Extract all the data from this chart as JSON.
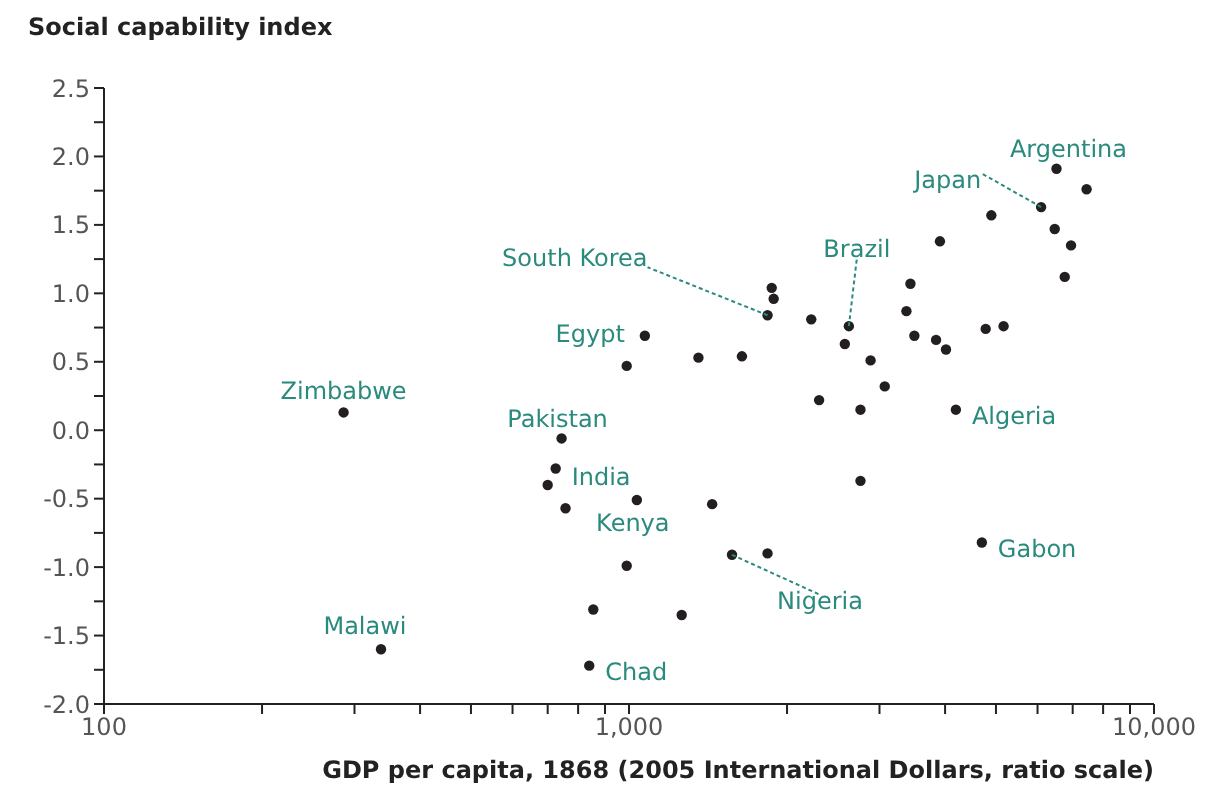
{
  "chart_data": {
    "type": "scatter",
    "xlabel": "GDP per capita, 1868 (2005 International Dollars, ratio scale)",
    "ylabel": "Social capability index",
    "log": "x",
    "grid": false,
    "legend": false,
    "marker": "circle",
    "xlim": [
      100,
      10000
    ],
    "xticks": [
      {
        "value": 100,
        "label": "100"
      },
      {
        "value": 200,
        "label": null
      },
      {
        "value": 300,
        "label": null
      },
      {
        "value": 400,
        "label": null
      },
      {
        "value": 500,
        "label": null
      },
      {
        "value": 600,
        "label": null
      },
      {
        "value": 700,
        "label": null
      },
      {
        "value": 800,
        "label": null
      },
      {
        "value": 900,
        "label": null
      },
      {
        "value": 1000,
        "label": "1,000"
      },
      {
        "value": 2000,
        "label": null
      },
      {
        "value": 3000,
        "label": null
      },
      {
        "value": 4000,
        "label": null
      },
      {
        "value": 5000,
        "label": null
      },
      {
        "value": 6000,
        "label": null
      },
      {
        "value": 7000,
        "label": null
      },
      {
        "value": 8000,
        "label": null
      },
      {
        "value": 9000,
        "label": null
      },
      {
        "value": 10000,
        "label": "10,000"
      }
    ],
    "ylim": [
      -2,
      2.5
    ],
    "yticks": [
      {
        "value": -2,
        "label": "-2.0"
      },
      {
        "value": -1.75,
        "label": null
      },
      {
        "value": -1.5,
        "label": "-1.5"
      },
      {
        "value": -1.25,
        "label": null
      },
      {
        "value": -1,
        "label": "-1.0"
      },
      {
        "value": -0.75,
        "label": null
      },
      {
        "value": -0.5,
        "label": "-0.5"
      },
      {
        "value": -0.25,
        "label": null
      },
      {
        "value": 0,
        "label": "0.0"
      },
      {
        "value": 0.25,
        "label": null
      },
      {
        "value": 0.5,
        "label": "0.5"
      },
      {
        "value": 0.75,
        "label": null
      },
      {
        "value": 1,
        "label": "1.0"
      },
      {
        "value": 1.25,
        "label": null
      },
      {
        "value": 1.5,
        "label": "1.5"
      },
      {
        "value": 1.75,
        "label": null
      },
      {
        "value": 2,
        "label": "2.0"
      },
      {
        "value": 2.25,
        "label": null
      },
      {
        "value": 2.5,
        "label": "2.5"
      }
    ],
    "series": [
      {
        "color": "#231f20",
        "x": [
          286,
          337,
          744,
          725,
          700,
          757,
          990,
          990,
          855,
          840,
          1035,
          1072,
          1356,
          1641,
          1870,
          1886,
          1836,
          2224,
          2623,
          2577,
          2885,
          2302,
          2760,
          3070,
          2760,
          3436,
          3376,
          3496,
          3845,
          4016,
          3911,
          4194,
          4900,
          4780,
          5170,
          6095,
          6520,
          7440,
          6470,
          6950,
          6760,
          4700,
          1571,
          1836,
          1440,
          1260
        ],
        "values": [
          0.13,
          -1.6,
          -0.06,
          -0.28,
          -0.4,
          -0.57,
          0.47,
          -0.99,
          -1.31,
          -1.72,
          -0.51,
          0.69,
          0.53,
          0.54,
          1.04,
          0.96,
          0.84,
          0.81,
          0.76,
          0.63,
          0.51,
          0.22,
          0.15,
          0.32,
          -0.37,
          1.07,
          0.87,
          0.69,
          0.66,
          0.59,
          1.38,
          0.15,
          1.57,
          0.74,
          0.76,
          1.63,
          1.91,
          1.76,
          1.47,
          1.35,
          1.12,
          -0.82,
          -0.91,
          -0.9,
          -0.54,
          -1.35
        ]
      }
    ],
    "annotations": [
      {
        "text": "Zimbabwe",
        "x": 286,
        "y": 0.13
      },
      {
        "text": "Malawi",
        "x": 337,
        "y": -1.6
      },
      {
        "text": "Pakistan",
        "x": 744,
        "y": -0.06
      },
      {
        "text": "India",
        "x": 725,
        "y": -0.28
      },
      {
        "text": "Egypt",
        "x": 1072,
        "y": 0.69
      },
      {
        "text": "Kenya",
        "x": 1035,
        "y": -0.51
      },
      {
        "text": "Chad",
        "x": 840,
        "y": -1.72
      },
      {
        "text": "South Korea",
        "x": 1836,
        "y": 0.84
      },
      {
        "text": "Brazil",
        "x": 2623,
        "y": 0.76
      },
      {
        "text": "Japan",
        "x": 6095,
        "y": 1.63
      },
      {
        "text": "Argentina",
        "x": 6520,
        "y": 1.91
      },
      {
        "text": "Algeria",
        "x": 4194,
        "y": 0.15
      },
      {
        "text": "Gabon",
        "x": 4700,
        "y": -0.82
      },
      {
        "text": "Nigeria",
        "x": 1571,
        "y": -0.91
      }
    ]
  }
}
